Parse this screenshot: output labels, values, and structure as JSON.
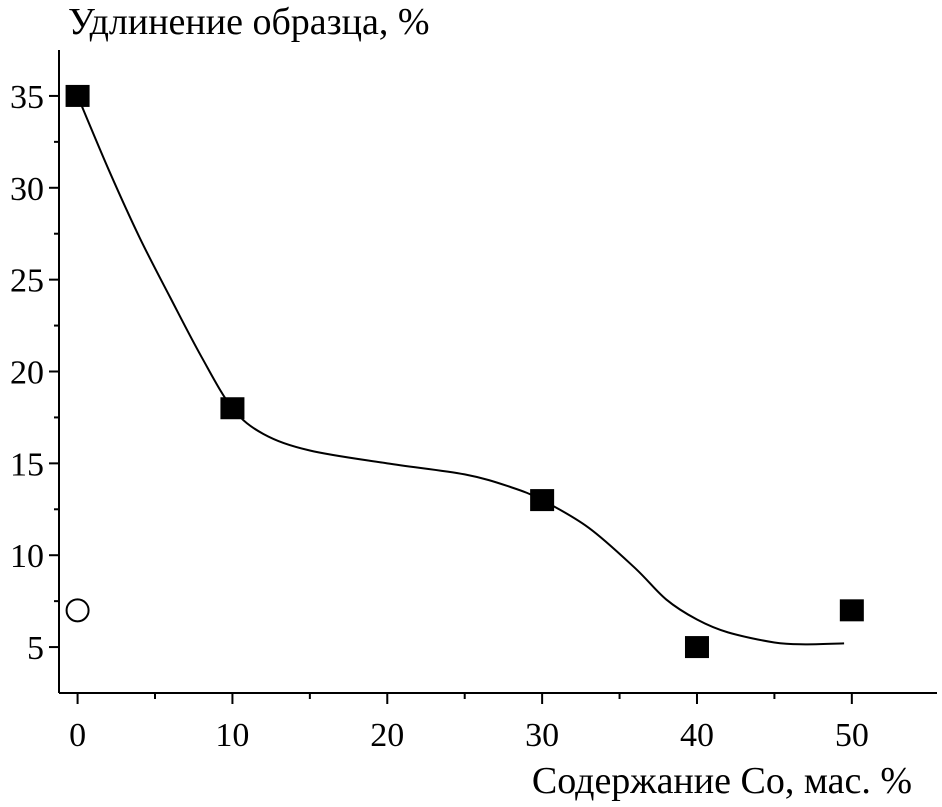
{
  "chart_data": {
    "type": "scatter",
    "title": "",
    "ylabel": "Удлинение образца, %",
    "xlabel": "Содержание Co, мас. %",
    "xlim": [
      -1.2,
      55.5
    ],
    "ylim": [
      2.5,
      37.5
    ],
    "x_ticks": [
      "0",
      "10",
      "20",
      "30",
      "40",
      "50"
    ],
    "y_ticks": [
      "5",
      "10",
      "15",
      "20",
      "25",
      "30",
      "35"
    ],
    "grid": false,
    "series": [
      {
        "marker": "filled-square",
        "color": "#000000",
        "points": [
          [
            0,
            35
          ],
          [
            10,
            18
          ],
          [
            30,
            13
          ],
          [
            40,
            5
          ],
          [
            50,
            7
          ]
        ]
      },
      {
        "marker": "open-circle",
        "color": "#000000",
        "points": [
          [
            0,
            7
          ]
        ]
      }
    ],
    "fit_curve": {
      "style": "smooth-line",
      "color": "#000000",
      "points": [
        [
          0,
          35
        ],
        [
          2,
          31
        ],
        [
          4,
          27.3
        ],
        [
          6,
          24
        ],
        [
          8,
          20.8
        ],
        [
          10,
          18
        ],
        [
          12,
          16.6
        ],
        [
          15,
          15.7
        ],
        [
          20,
          15
        ],
        [
          25,
          14.4
        ],
        [
          28,
          13.7
        ],
        [
          30,
          13
        ],
        [
          33,
          11.5
        ],
        [
          36,
          9.3
        ],
        [
          38,
          7.6
        ],
        [
          40,
          6.5
        ],
        [
          42,
          5.8
        ],
        [
          45,
          5.25
        ],
        [
          47,
          5.15
        ],
        [
          49.5,
          5.2
        ]
      ]
    }
  }
}
